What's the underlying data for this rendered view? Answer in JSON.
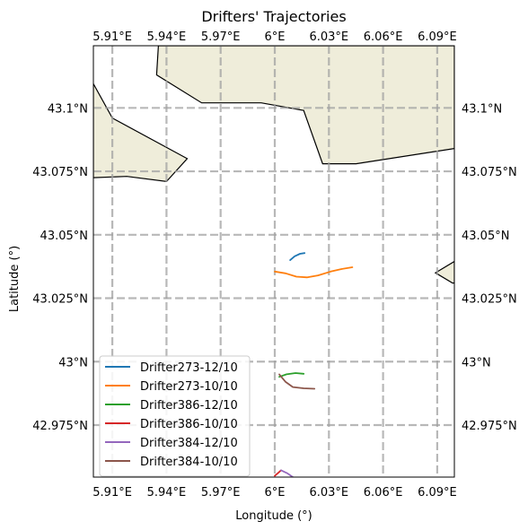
{
  "chart_data": {
    "type": "line",
    "title": "Drifters' Trajectories",
    "xlabel": "Longitude (°)",
    "ylabel": "Latitude (°)",
    "xlim": [
      5.8995,
      6.0995
    ],
    "ylim": [
      42.9545,
      43.1245
    ],
    "grid": true,
    "legend_position": "lower-left",
    "x_ticks": [
      {
        "value": 5.91,
        "label": "5.91°E"
      },
      {
        "value": 5.94,
        "label": "5.94°E"
      },
      {
        "value": 5.97,
        "label": "5.97°E"
      },
      {
        "value": 6.0,
        "label": "6°E"
      },
      {
        "value": 6.03,
        "label": "6.03°E"
      },
      {
        "value": 6.06,
        "label": "6.06°E"
      },
      {
        "value": 6.09,
        "label": "6.09°E"
      }
    ],
    "y_ticks": [
      {
        "value": 43.1,
        "label": "43.1°N"
      },
      {
        "value": 43.075,
        "label": "43.075°N"
      },
      {
        "value": 43.05,
        "label": "43.05°N"
      },
      {
        "value": 43.025,
        "label": "43.025°N"
      },
      {
        "value": 43.0,
        "label": "43°N"
      },
      {
        "value": 42.975,
        "label": "42.975°N"
      }
    ],
    "land_color": "#efedda",
    "land": [
      {
        "polygon": [
          [
            5.9355,
            43.1245
          ],
          [
            5.9345,
            43.113
          ],
          [
            5.9595,
            43.102
          ],
          [
            5.9925,
            43.102
          ],
          [
            6.016,
            43.099
          ],
          [
            6.0265,
            43.078
          ],
          [
            6.045,
            43.078
          ],
          [
            6.0995,
            43.084
          ],
          [
            6.0995,
            43.1245
          ]
        ]
      },
      {
        "polygon": [
          [
            5.8995,
            43.1095
          ],
          [
            5.91,
            43.096
          ],
          [
            5.9515,
            43.08
          ],
          [
            5.94,
            43.071
          ],
          [
            5.918,
            43.073
          ],
          [
            5.8995,
            43.0725
          ]
        ]
      },
      {
        "polygon": [
          [
            6.0995,
            43.0395
          ],
          [
            6.089,
            43.035
          ],
          [
            6.0985,
            43.031
          ],
          [
            6.0995,
            43.031
          ]
        ]
      }
    ],
    "series": [
      {
        "name": "Drifter273-12/10",
        "color": "#1f77b4",
        "points": [
          [
            6.0085,
            43.04
          ],
          [
            6.011,
            43.0415
          ],
          [
            6.014,
            43.0425
          ],
          [
            6.0165,
            43.0428
          ]
        ]
      },
      {
        "name": "Drifter273-10/10",
        "color": "#ff7f0e",
        "points": [
          [
            6.0,
            43.0355
          ],
          [
            6.006,
            43.0348
          ],
          [
            6.012,
            43.0335
          ],
          [
            6.018,
            43.0332
          ],
          [
            6.024,
            43.034
          ],
          [
            6.031,
            43.0355
          ],
          [
            6.037,
            43.0365
          ],
          [
            6.043,
            43.0372
          ]
        ]
      },
      {
        "name": "Drifter386-12/10",
        "color": "#2ca02c",
        "points": [
          [
            6.0025,
            42.994
          ],
          [
            6.0065,
            42.995
          ],
          [
            6.0115,
            42.9955
          ],
          [
            6.016,
            42.9952
          ]
        ]
      },
      {
        "name": "Drifter386-10/10",
        "color": "#d62728",
        "points": [
          [
            6.0,
            42.955
          ],
          [
            6.002,
            42.9562
          ],
          [
            6.0035,
            42.9572
          ]
        ]
      },
      {
        "name": "Drifter384-12/10",
        "color": "#9467bd",
        "points": [
          [
            6.0035,
            42.9572
          ],
          [
            6.007,
            42.956
          ],
          [
            6.011,
            42.954
          ]
        ]
      },
      {
        "name": "Drifter384-10/10",
        "color": "#8c564b",
        "points": [
          [
            6.0025,
            42.995
          ],
          [
            6.006,
            42.992
          ],
          [
            6.01,
            42.99
          ],
          [
            6.016,
            42.9895
          ],
          [
            6.022,
            42.9893
          ]
        ]
      }
    ]
  }
}
